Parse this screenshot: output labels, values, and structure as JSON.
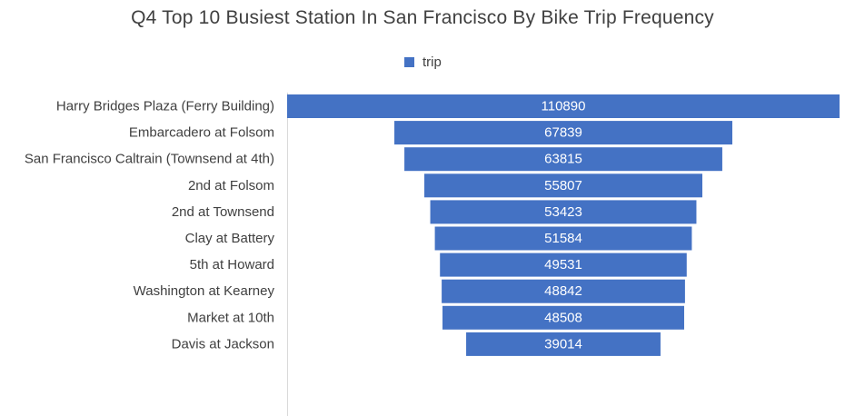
{
  "chart_data": {
    "type": "bar",
    "orientation": "horizontal",
    "style": "funnel",
    "title": "Q4 Top 10 Busiest Station In San Francisco By Bike Trip Frequency",
    "xlabel": "",
    "ylabel": "",
    "grid": false,
    "legend_position": "top-center",
    "categories": [
      "Harry Bridges Plaza (Ferry Building)",
      "Embarcadero at Folsom",
      "San Francisco Caltrain (Townsend at 4th)",
      "2nd at Folsom",
      "2nd at Townsend",
      "Clay at Battery",
      "5th at Howard",
      "Washington at Kearney",
      "Market at 10th",
      "Davis at Jackson"
    ],
    "series": [
      {
        "name": "trip",
        "color": "#4472c4",
        "values": [
          110890,
          67839,
          63815,
          55807,
          53423,
          51584,
          49531,
          48842,
          48508,
          39014
        ]
      }
    ]
  }
}
